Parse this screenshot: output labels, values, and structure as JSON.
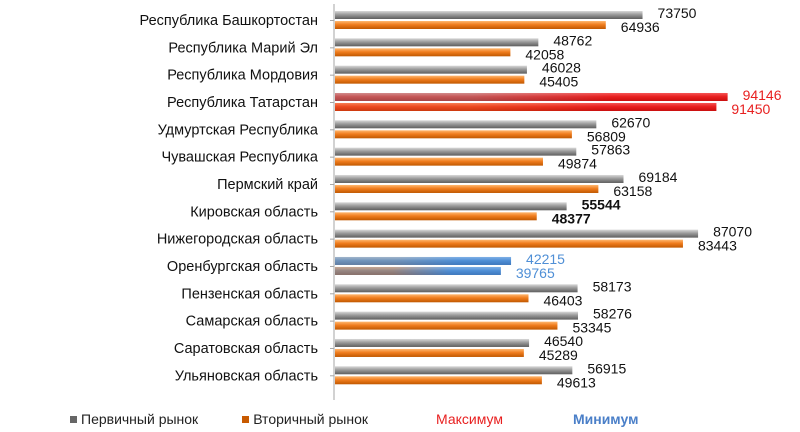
{
  "colors": {
    "primary": "#8c8c8c",
    "secondary": "#f07d1e",
    "max": "#e82020",
    "min": "#4f8fd6",
    "axis": "#a6a6a6"
  },
  "legend": {
    "primary_label": "Первичный рынок",
    "secondary_label": "Вторичный рынок",
    "max_label": "Максимум",
    "min_label": "Минимум"
  },
  "chart_data": {
    "type": "bar",
    "orientation": "horizontal",
    "categories": [
      "Республика Башкортостан",
      "Республика Марий Эл",
      "Республика Мордовия",
      "Республика Татарстан",
      "Удмуртская Республика",
      "Чувашская Республика",
      "Пермский край",
      "Кировская область",
      "Нижегородская область",
      "Оренбургская область",
      "Пензенская область",
      "Самарская область",
      "Саратовская область",
      "Ульяновская область"
    ],
    "series": [
      {
        "name": "Первичный рынок",
        "values": [
          73750,
          48762,
          46028,
          94146,
          62670,
          57863,
          69184,
          55544,
          87070,
          42215,
          58173,
          58276,
          46540,
          56915
        ]
      },
      {
        "name": "Вторичный рынок",
        "values": [
          64936,
          42058,
          45405,
          91450,
          56809,
          49874,
          63158,
          48377,
          83443,
          39765,
          46403,
          53345,
          45289,
          49613
        ]
      }
    ],
    "highlights": {
      "max_category": "Республика Татарстан",
      "min_category": "Оренбургская область",
      "bold_category": "Кировская область"
    },
    "xlim": [
      0,
      100000
    ],
    "grid": false,
    "legend_position": "bottom"
  }
}
